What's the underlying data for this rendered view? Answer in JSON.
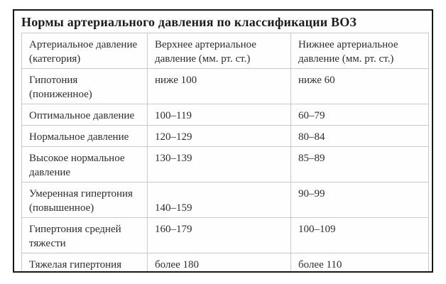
{
  "panel": {
    "title": "Нормы артериального давления по классификации ВОЗ"
  },
  "table": {
    "headers": [
      "Артериальное давление\n(категория)",
      "Верхнее артериальное\nдавление (мм. рт. ст.)",
      "Нижнее артериальное\nдавление (мм. рт. ст.)"
    ],
    "rows": [
      [
        "Гипотония\n(пониженное)",
        "ниже 100",
        "ниже 60"
      ],
      [
        "Оптимальное давление",
        "100–119",
        "60–79"
      ],
      [
        "Нормальное давление",
        "120–129",
        "80–84"
      ],
      [
        "Высокое нормальное\nдавление",
        "130–139",
        "85–89"
      ],
      [
        "Умеренная гипертония\n(повышенное)",
        "140–159",
        "90–99"
      ],
      [
        "Гипертония средней\nтяжести",
        "160–179",
        "100–109"
      ],
      [
        "Тяжелая гипертония",
        "более 180",
        "более 110"
      ]
    ]
  },
  "colors": {
    "frame_border": "#161616",
    "table_border": "#c9c9c9",
    "text": "#2d2d2d",
    "background": "#ffffff"
  }
}
